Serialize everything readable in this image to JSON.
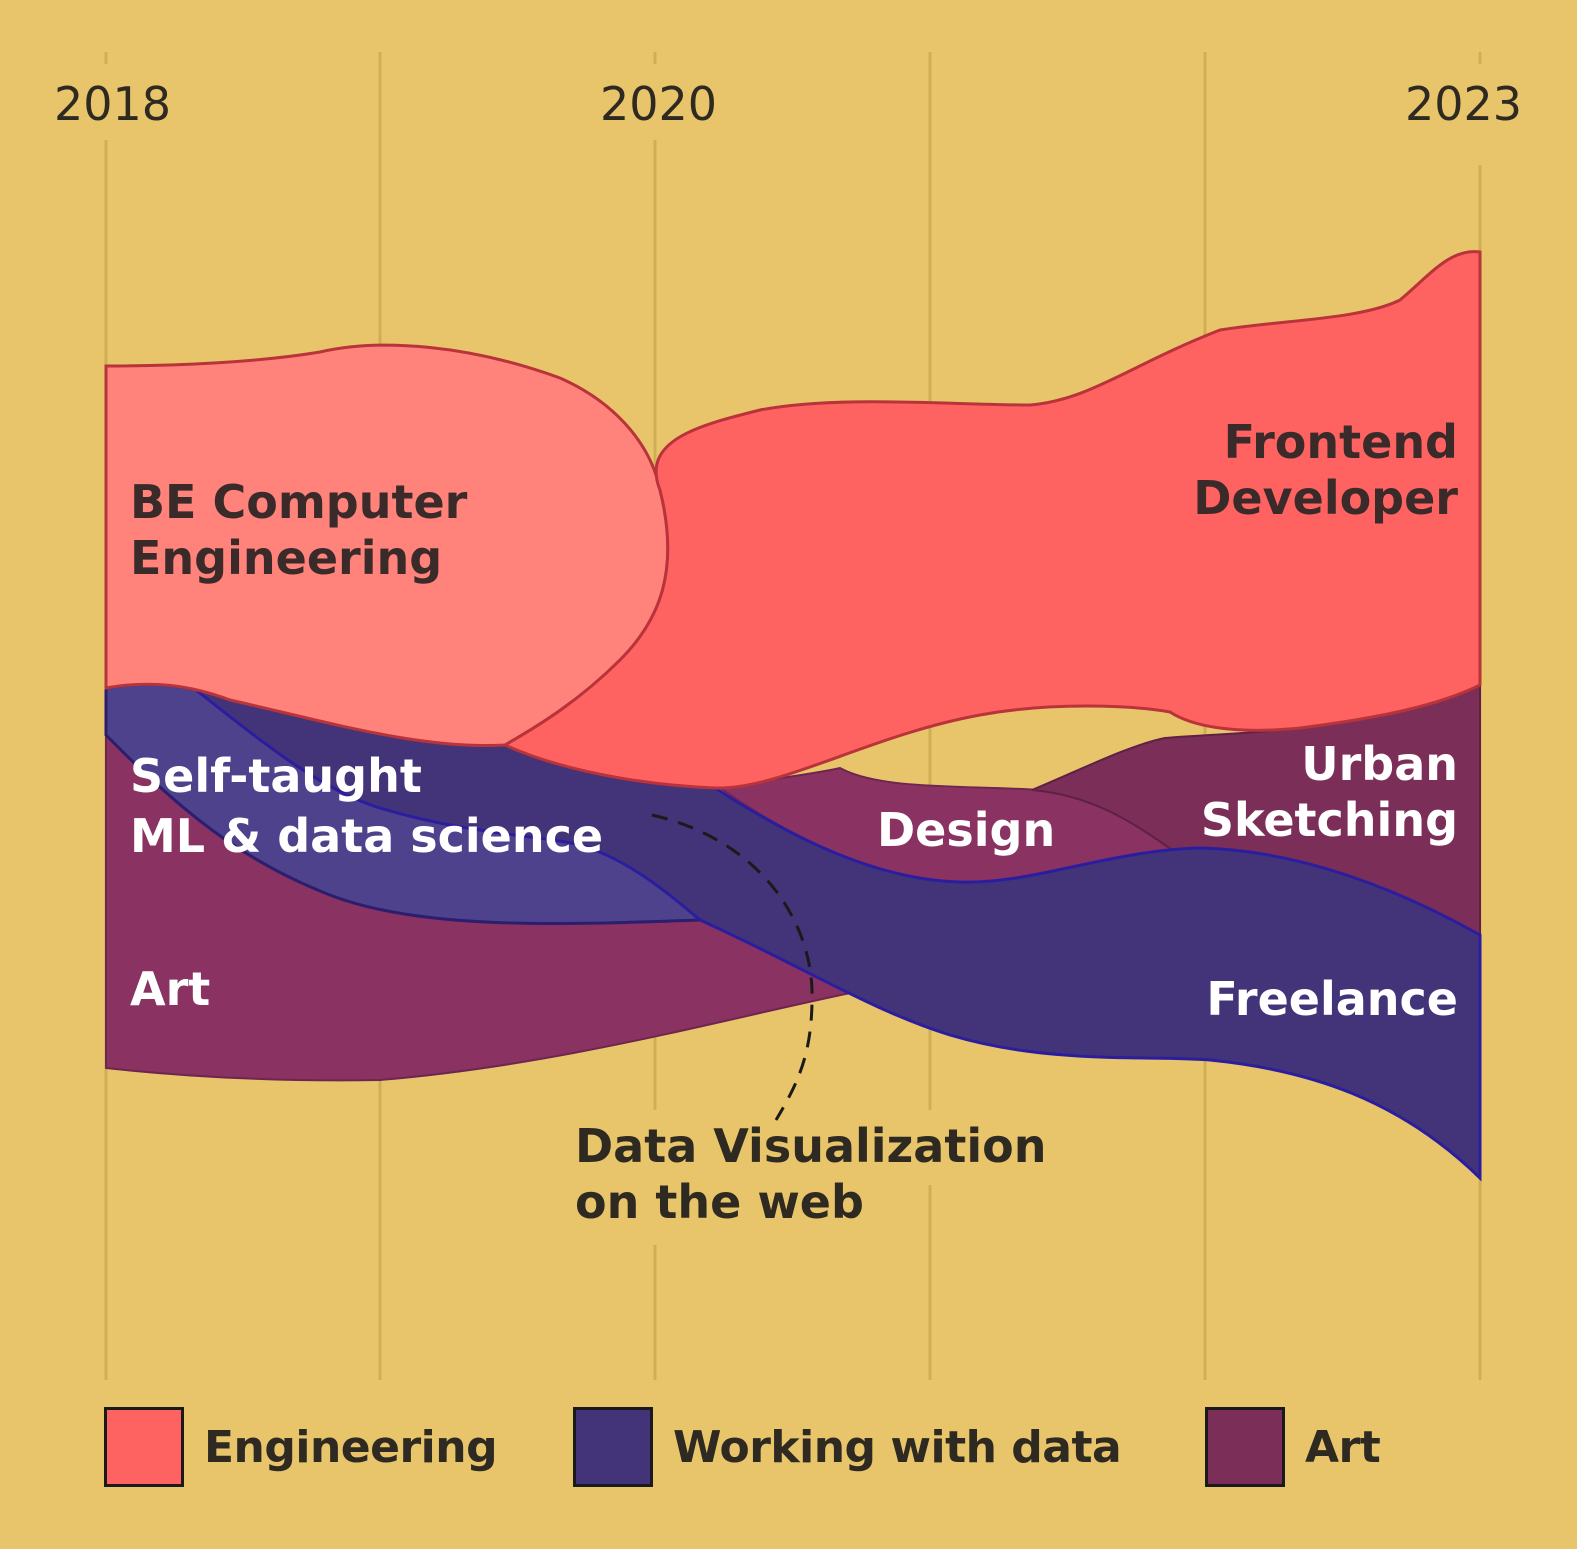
{
  "chart_data": {
    "type": "area",
    "title": "",
    "x_ticks": [
      "2018",
      "2020",
      "2023"
    ],
    "xlim": [
      2018,
      2023
    ],
    "grid": true,
    "legend": {
      "placement": "bottom",
      "items": [
        {
          "label": "Engineering",
          "color": "#ff6361"
        },
        {
          "label": "Working with data",
          "color": "#433479"
        },
        {
          "label": "Art",
          "color": "#8a3362"
        }
      ]
    },
    "series": [
      {
        "name": "BE Computer Engineering",
        "category": "Engineering",
        "start": 2018.0,
        "end": 2020.0,
        "color": "#ff837b"
      },
      {
        "name": "Frontend Developer",
        "category": "Engineering",
        "start": 2019.5,
        "end": 2023.0,
        "color": "#ff6361"
      },
      {
        "name": "Self-taught ML & data science",
        "category": "Working with data",
        "start": 2018.0,
        "end": 2020.1,
        "color": "#4f428c"
      },
      {
        "name": "Data Visualization on the web",
        "category": "Working with data",
        "start": 2020.0,
        "end": 2023.0,
        "color": "#433479"
      },
      {
        "name": "Art",
        "category": "Art",
        "start": 2018.0,
        "end": 2020.7,
        "color": "#8a3362"
      },
      {
        "name": "Design",
        "category": "Art",
        "start": 2020.2,
        "end": 2022.0,
        "color": "#8a3362"
      },
      {
        "name": "Urban Sketching",
        "category": "Art",
        "start": 2021.5,
        "end": 2023.0,
        "color": "#7a2e58"
      },
      {
        "name": "Freelance",
        "category": "Working with data",
        "start": 2021.0,
        "end": 2023.0,
        "color": "#433479"
      }
    ],
    "labels": {
      "be_computer": [
        "BE Computer",
        "Engineering"
      ],
      "frontend": [
        "Frontend",
        "Developer"
      ],
      "self_taught": [
        "Self-taught",
        "ML & data science"
      ],
      "art": "Art",
      "design": "Design",
      "urban": [
        "Urban",
        "Sketching"
      ],
      "freelance": "Freelance",
      "dataviz": [
        "Data Visualization",
        "on the web"
      ]
    }
  }
}
